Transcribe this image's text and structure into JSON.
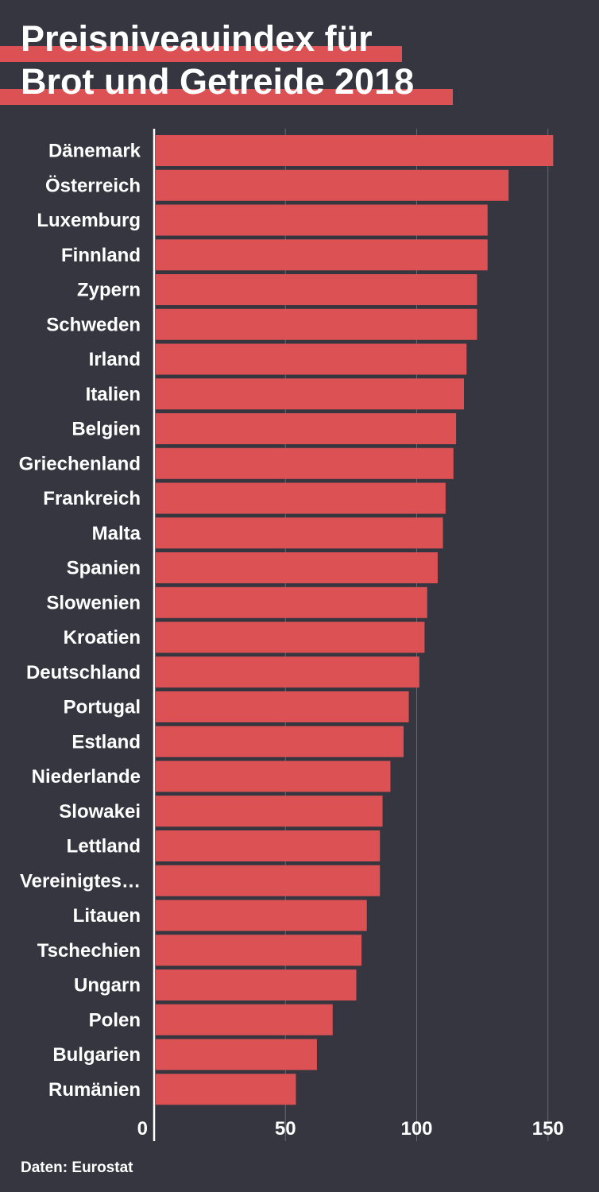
{
  "source": "Daten: Eurostat",
  "colors": {
    "background": "#353640",
    "bar": "#dc5254",
    "gridline": "#666873",
    "axis": "#ffffff",
    "text": "#ffffff"
  },
  "chart_data": {
    "type": "bar",
    "orientation": "horizontal",
    "title": "Preisniveauindex für Brot und Getreide 2018",
    "title_lines": [
      "Preisniveauindex für",
      "Brot und Getreide 2018"
    ],
    "xlabel": "",
    "ylabel": "",
    "xlim": [
      0,
      160
    ],
    "xticks": [
      0,
      50,
      100,
      150
    ],
    "grid": true,
    "legend": "none",
    "categories": [
      "Dänemark",
      "Österreich",
      "Luxemburg",
      "Finnland",
      "Zypern",
      "Schweden",
      "Irland",
      "Italien",
      "Belgien",
      "Griechenland",
      "Frankreich",
      "Malta",
      "Spanien",
      "Slowenien",
      "Kroatien",
      "Deutschland",
      "Portugal",
      "Estland",
      "Niederlande",
      "Slowakei",
      "Lettland",
      "Vereinigtes…",
      "Litauen",
      "Tschechien",
      "Ungarn",
      "Polen",
      "Bulgarien",
      "Rumänien"
    ],
    "values": [
      152,
      135,
      127,
      127,
      123,
      123,
      119,
      118,
      115,
      114,
      111,
      110,
      108,
      104,
      103,
      101,
      97,
      95,
      90,
      87,
      86,
      86,
      81,
      79,
      77,
      68,
      62,
      54
    ]
  }
}
